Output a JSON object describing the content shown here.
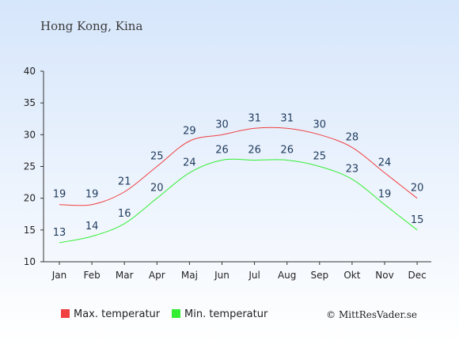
{
  "chart_data": {
    "type": "line",
    "title": "Hong Kong, Kina",
    "categories": [
      "Jan",
      "Feb",
      "Mar",
      "Apr",
      "Maj",
      "Jun",
      "Jul",
      "Aug",
      "Sep",
      "Okt",
      "Nov",
      "Dec"
    ],
    "series": [
      {
        "name": "Max. temperatur",
        "color": "#f04040",
        "values": [
          19,
          19,
          21,
          25,
          29,
          30,
          31,
          31,
          30,
          28,
          24,
          20
        ]
      },
      {
        "name": "Min. temperatur",
        "color": "#33ee33",
        "values": [
          13,
          14,
          16,
          20,
          24,
          26,
          26,
          26,
          25,
          23,
          19,
          15
        ]
      }
    ],
    "ylim": [
      10,
      40
    ],
    "yticks": [
      10,
      15,
      20,
      25,
      30,
      35,
      40
    ],
    "grid": false,
    "legend_position": "bottom-left"
  },
  "credit": "© MittResVader.se"
}
